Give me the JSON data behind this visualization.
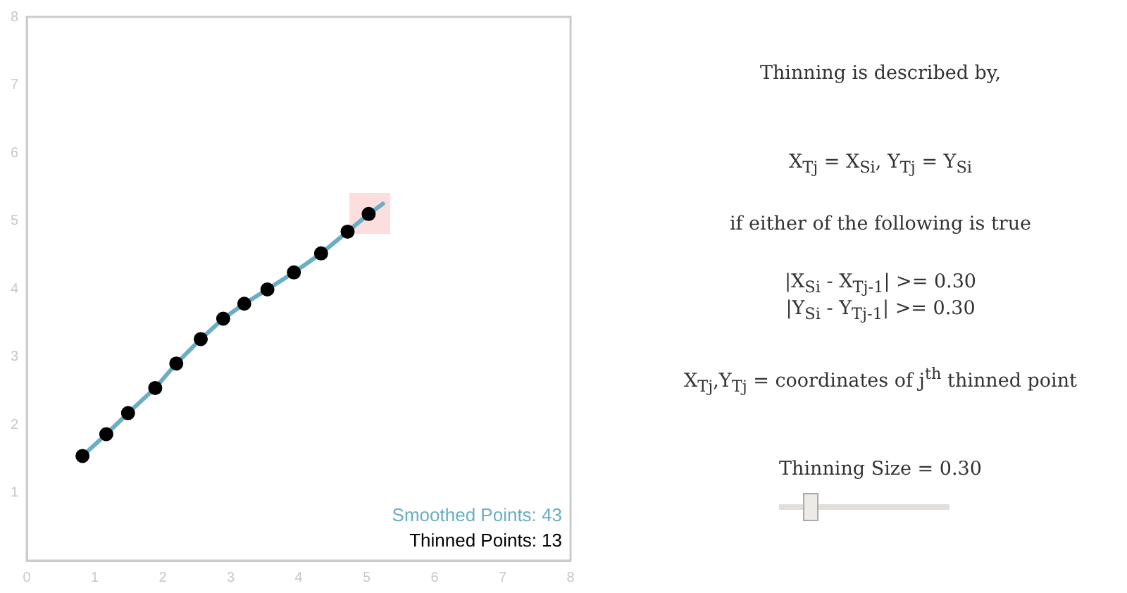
{
  "chart_data": {
    "type": "scatter",
    "xlim": [
      0,
      8
    ],
    "ylim": [
      0,
      8
    ],
    "xticks": [
      0,
      1,
      2,
      3,
      4,
      5,
      6,
      7,
      8
    ],
    "yticks": [
      {
        "value": 0,
        "label": null
      },
      1,
      2,
      3,
      4,
      5,
      6,
      7,
      8
    ],
    "grid": false,
    "legend": "bottom right",
    "series": [
      {
        "name": "Smoothed Points: 43",
        "type": "line",
        "marker": "none",
        "color": "#6aaec4",
        "x": [
          0.82,
          1.17,
          1.49,
          1.89,
          2.2,
          2.56,
          2.89,
          3.2,
          3.54,
          3.93,
          4.33,
          4.72,
          5.03,
          5.24
        ],
        "values": [
          1.54,
          1.86,
          2.17,
          2.54,
          2.9,
          3.26,
          3.56,
          3.78,
          3.99,
          4.24,
          4.52,
          4.84,
          5.1,
          5.25
        ]
      },
      {
        "name": "Thinned Points: 13",
        "marker": "circle",
        "color": "#000000",
        "x": [
          0.82,
          1.17,
          1.49,
          1.89,
          2.2,
          2.56,
          2.89,
          3.2,
          3.54,
          3.93,
          4.33,
          4.72,
          5.03
        ],
        "values": [
          1.54,
          1.86,
          2.17,
          2.54,
          2.9,
          3.26,
          3.56,
          3.78,
          3.99,
          4.24,
          4.52,
          4.84,
          5.1
        ]
      }
    ],
    "annotations": [
      "Thinning is described by,",
      "X$_{Tj}$ = X$_{Si}$, Y$_{Tj}$ = Y$_{Si}$",
      "if either of the following is true",
      "|X$_{Si}$ - X$_{Tj-1}$| >= 0.30",
      "|Y$_{Si}$ - Y$_{Tj-1}$| >= 0.30",
      "X$_{Tj}$,Y$_{Tj}$ = coordinates of j$^{th}$ thinned point",
      "Thinning Size = 0.30"
    ]
  }
}
